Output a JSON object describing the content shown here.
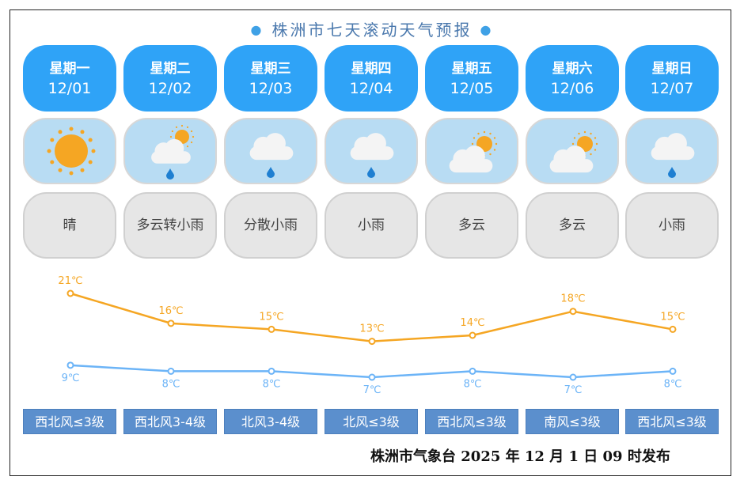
{
  "title": "株洲市七天滚动天气预报",
  "days": [
    {
      "weekday": "星期一",
      "date": "12/01",
      "icon": "sun-icon",
      "desc": "晴",
      "wind": "西北风≤3级"
    },
    {
      "weekday": "星期二",
      "date": "12/02",
      "icon": "cloud-sun-rain-icon",
      "desc": "多云转小雨",
      "wind": "西北风3-4级"
    },
    {
      "weekday": "星期三",
      "date": "12/03",
      "icon": "cloud-rain-icon",
      "desc": "分散小雨",
      "wind": "北风3-4级"
    },
    {
      "weekday": "星期四",
      "date": "12/04",
      "icon": "cloud-rain-icon",
      "desc": "小雨",
      "wind": "北风≤3级"
    },
    {
      "weekday": "星期五",
      "date": "12/05",
      "icon": "cloud-sun-icon",
      "desc": "多云",
      "wind": "西北风≤3级"
    },
    {
      "weekday": "星期六",
      "date": "12/06",
      "icon": "cloud-sun-icon",
      "desc": "多云",
      "wind": "南风≤3级"
    },
    {
      "weekday": "星期日",
      "date": "12/07",
      "icon": "cloud-rain-icon",
      "desc": "小雨",
      "wind": "西北风≤3级"
    }
  ],
  "chart_data": {
    "type": "line",
    "categories": [
      "12/01",
      "12/02",
      "12/03",
      "12/04",
      "12/05",
      "12/06",
      "12/07"
    ],
    "series": [
      {
        "values": [
          21,
          16,
          15,
          13,
          14,
          18,
          15
        ],
        "labels": [
          "21℃",
          "16℃",
          "15℃",
          "13℃",
          "14℃",
          "18℃",
          "15℃"
        ],
        "color": "#f5a623"
      },
      {
        "values": [
          9,
          8,
          8,
          7,
          8,
          7,
          8
        ],
        "labels": [
          "9℃",
          "8℃",
          "8℃",
          "7℃",
          "8℃",
          "7℃",
          "8℃"
        ],
        "color": "#6cb4f7"
      }
    ],
    "ylim": [
      7,
      21
    ],
    "grid": false
  },
  "colors": {
    "day_card": "#2fa3f7",
    "icon_card": "#b8dcf3",
    "desc_card": "#e6e6e6",
    "wind_button": "#5b8fcd",
    "title": "#4a78ad"
  },
  "footer": "株洲市气象台 2025 年 12 月 1 日 09 时发布"
}
